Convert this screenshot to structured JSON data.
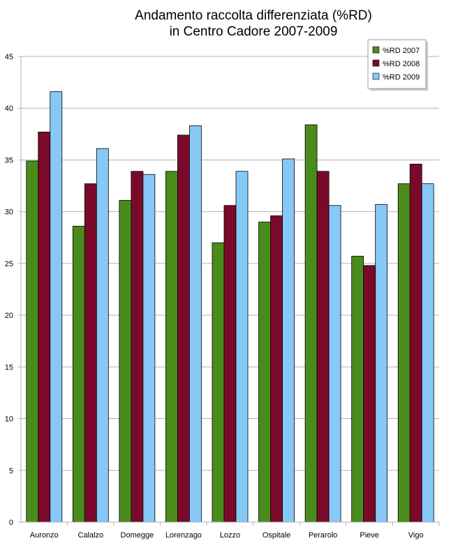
{
  "chart_data": {
    "type": "bar",
    "title": [
      "Andamento raccolta differenziata (%RD)",
      "in Centro Cadore  2007-2009"
    ],
    "xlabel": "",
    "ylabel": "",
    "ylim": [
      0,
      45
    ],
    "yticks": [
      0,
      5,
      10,
      15,
      20,
      25,
      30,
      35,
      40,
      45
    ],
    "grid": true,
    "legend_position": "top-right",
    "categories": [
      "Auronzo",
      "Calalzo",
      "Domegge",
      "Lorenzago",
      "Lozzo",
      "Ospitale",
      "Perarolo",
      "Pieve",
      "Vigo"
    ],
    "series": [
      {
        "name": "%RD 2007",
        "color": "#4a8c1c",
        "values": [
          34.9,
          28.6,
          31.1,
          33.9,
          27.0,
          29.0,
          38.4,
          25.7,
          32.7
        ]
      },
      {
        "name": "%RD 2008",
        "color": "#7b0a2a",
        "values": [
          37.7,
          32.7,
          33.9,
          37.4,
          30.6,
          29.6,
          33.9,
          24.8,
          34.6
        ]
      },
      {
        "name": "%RD 2009",
        "color": "#87c8f7",
        "values": [
          41.6,
          36.1,
          33.6,
          38.3,
          33.9,
          35.1,
          30.6,
          30.7,
          32.7
        ]
      }
    ]
  }
}
